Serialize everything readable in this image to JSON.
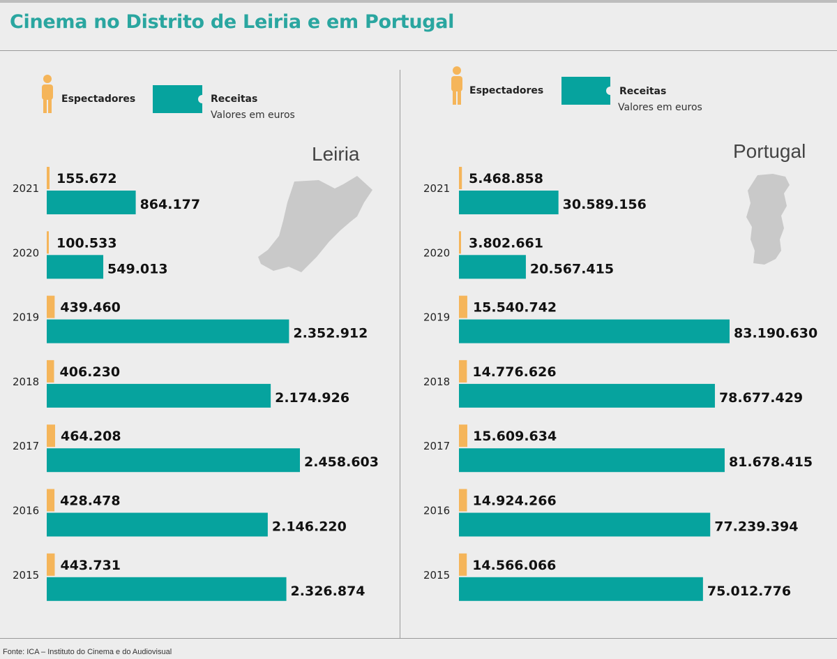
{
  "title": "Cinema no Distrito de Leiria e em Portugal",
  "footer": "Fonte: ICA – Instituto do Cinema e do Audiovisual",
  "legend": {
    "spectators": "Espectadores",
    "revenue": "Receitas",
    "revenue_sub": "Valores em euros",
    "spectators_color": "#f5b55a",
    "revenue_color": "#06a39e"
  },
  "chart_data": [
    {
      "type": "bar",
      "title": "Leiria",
      "categories": [
        "2021",
        "2020",
        "2019",
        "2018",
        "2017",
        "2016",
        "2015"
      ],
      "series": [
        {
          "name": "Espectadores",
          "values": [
            155672,
            100533,
            439460,
            406230,
            464208,
            428478,
            443731
          ],
          "labels": [
            "155.672",
            "100.533",
            "439.460",
            "406.230",
            "464.208",
            "428.478",
            "443.731"
          ]
        },
        {
          "name": "Receitas",
          "values": [
            864177,
            549013,
            2352912,
            2174926,
            2458603,
            2146220,
            2326874
          ],
          "labels": [
            "864.177",
            "549.013",
            "2.352.912",
            "2.174.926",
            "2.458.603",
            "2.146.220",
            "2.326.874"
          ]
        }
      ]
    },
    {
      "type": "bar",
      "title": "Portugal",
      "categories": [
        "2021",
        "2020",
        "2019",
        "2018",
        "2017",
        "2016",
        "2015"
      ],
      "series": [
        {
          "name": "Espectadores",
          "values": [
            5468858,
            3802661,
            15540742,
            14776626,
            15609634,
            14924266,
            14566066
          ],
          "labels": [
            "5.468.858",
            "3.802.661",
            "15.540.742",
            "14.776.626",
            "15.609.634",
            "14.924.266",
            "14.566.066"
          ]
        },
        {
          "name": "Receitas",
          "values": [
            30589156,
            20567415,
            83190630,
            78677429,
            81678415,
            77239394,
            75012776
          ],
          "labels": [
            "30.589.156",
            "20.567.415",
            "83.190.630",
            "78.677.429",
            "81.678.415",
            "77.239.394",
            "75.012.776"
          ]
        }
      ]
    }
  ]
}
